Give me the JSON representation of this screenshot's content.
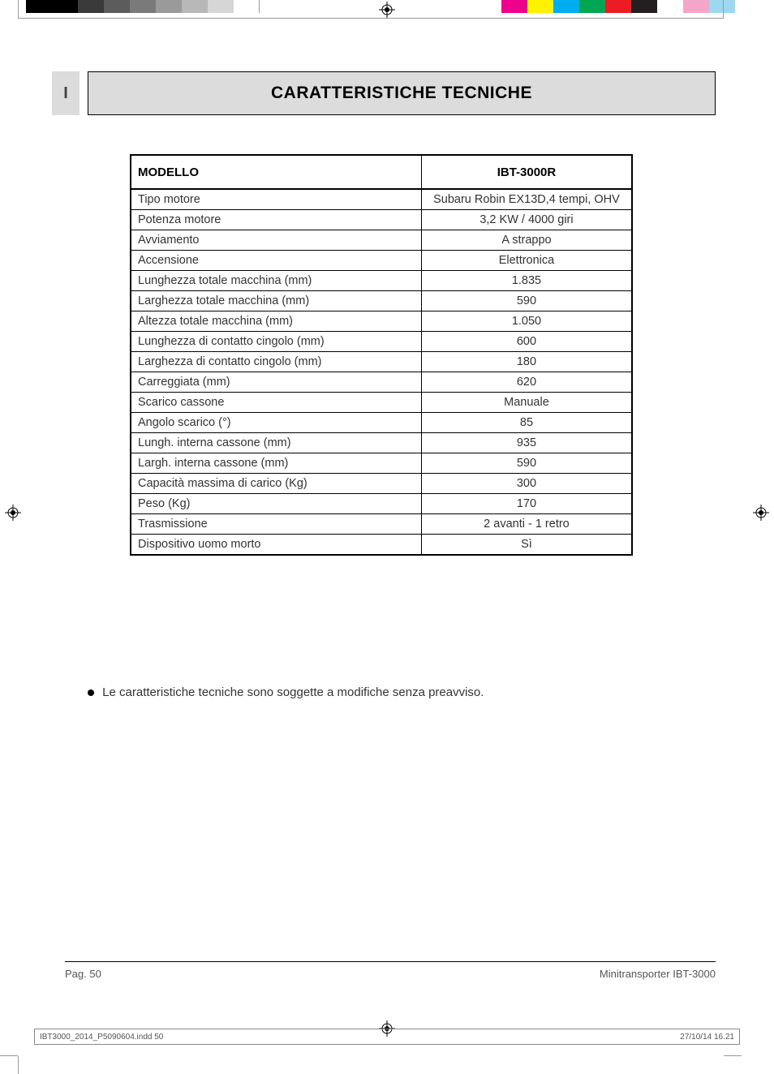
{
  "registration_marks": {
    "stroke": "#000000",
    "fill": "#ffffff"
  },
  "color_bars": {
    "left": [
      "#000000",
      "#000000",
      "#3a3a3a",
      "#5c5c5c",
      "#7a7a7a",
      "#9a9a9a",
      "#b8b8b8",
      "#d6d6d6",
      "#ffffff"
    ],
    "right": [
      "#ec008c",
      "#fff200",
      "#00aeef",
      "#00a651",
      "#ed1c24",
      "#231f20",
      "#ffffff",
      "#f4a6c9",
      "#9ed8f0"
    ]
  },
  "tab": "I",
  "header_title": "CARATTERISTICHE TECNICHE",
  "table": {
    "header_left": "MODELLO",
    "header_right": "IBT-3000R",
    "rows": [
      {
        "label": "Tipo motore",
        "value": "Subaru Robin EX13D,4 tempi, OHV"
      },
      {
        "label": "Potenza motore",
        "value": "3,2 KW / 4000 giri"
      },
      {
        "label": "Avviamento",
        "value": "A strappo"
      },
      {
        "label": "Accensione",
        "value": "Elettronica"
      },
      {
        "label": "Lunghezza totale macchina (mm)",
        "value": "1.835"
      },
      {
        "label": "Larghezza totale macchina (mm)",
        "value": "590"
      },
      {
        "label": "Altezza totale macchina (mm)",
        "value": "1.050"
      },
      {
        "label": "Lunghezza di contatto cingolo (mm)",
        "value": "600"
      },
      {
        "label": "Larghezza di contatto cingolo (mm)",
        "value": "180"
      },
      {
        "label": "Carreggiata (mm)",
        "value": "620"
      },
      {
        "label": "Scarico cassone",
        "value": "Manuale"
      },
      {
        "label": "Angolo scarico (°)",
        "value": "85"
      },
      {
        "label": "Lungh. interna cassone (mm)",
        "value": "935"
      },
      {
        "label": "Largh. interna cassone (mm)",
        "value": "590"
      },
      {
        "label": "Capacità massima di carico (Kg)",
        "value": "300"
      },
      {
        "label": "Peso (Kg)",
        "value": "170"
      },
      {
        "label": "Trasmissione",
        "value": "2 avanti - 1 retro"
      },
      {
        "label": "Dispositivo uomo morto",
        "value": "Sì"
      }
    ]
  },
  "footnote": "Le caratteristiche tecniche sono soggette a modifiche senza preavviso.",
  "footer": {
    "page_label": "Pag. 50",
    "doc_label": "Minitransporter IBT-3000"
  },
  "slug": {
    "file": "IBT3000_2014_P5090604.indd   50",
    "timestamp": "27/10/14   16.21"
  },
  "styling": {
    "page_bg": "#ffffff",
    "header_bg": "#dcdcdc",
    "text_color": "#333333",
    "border_color": "#000000",
    "title_fontsize": 21,
    "body_fontsize": 14.5,
    "footer_fontsize": 13,
    "slug_fontsize": 10
  }
}
